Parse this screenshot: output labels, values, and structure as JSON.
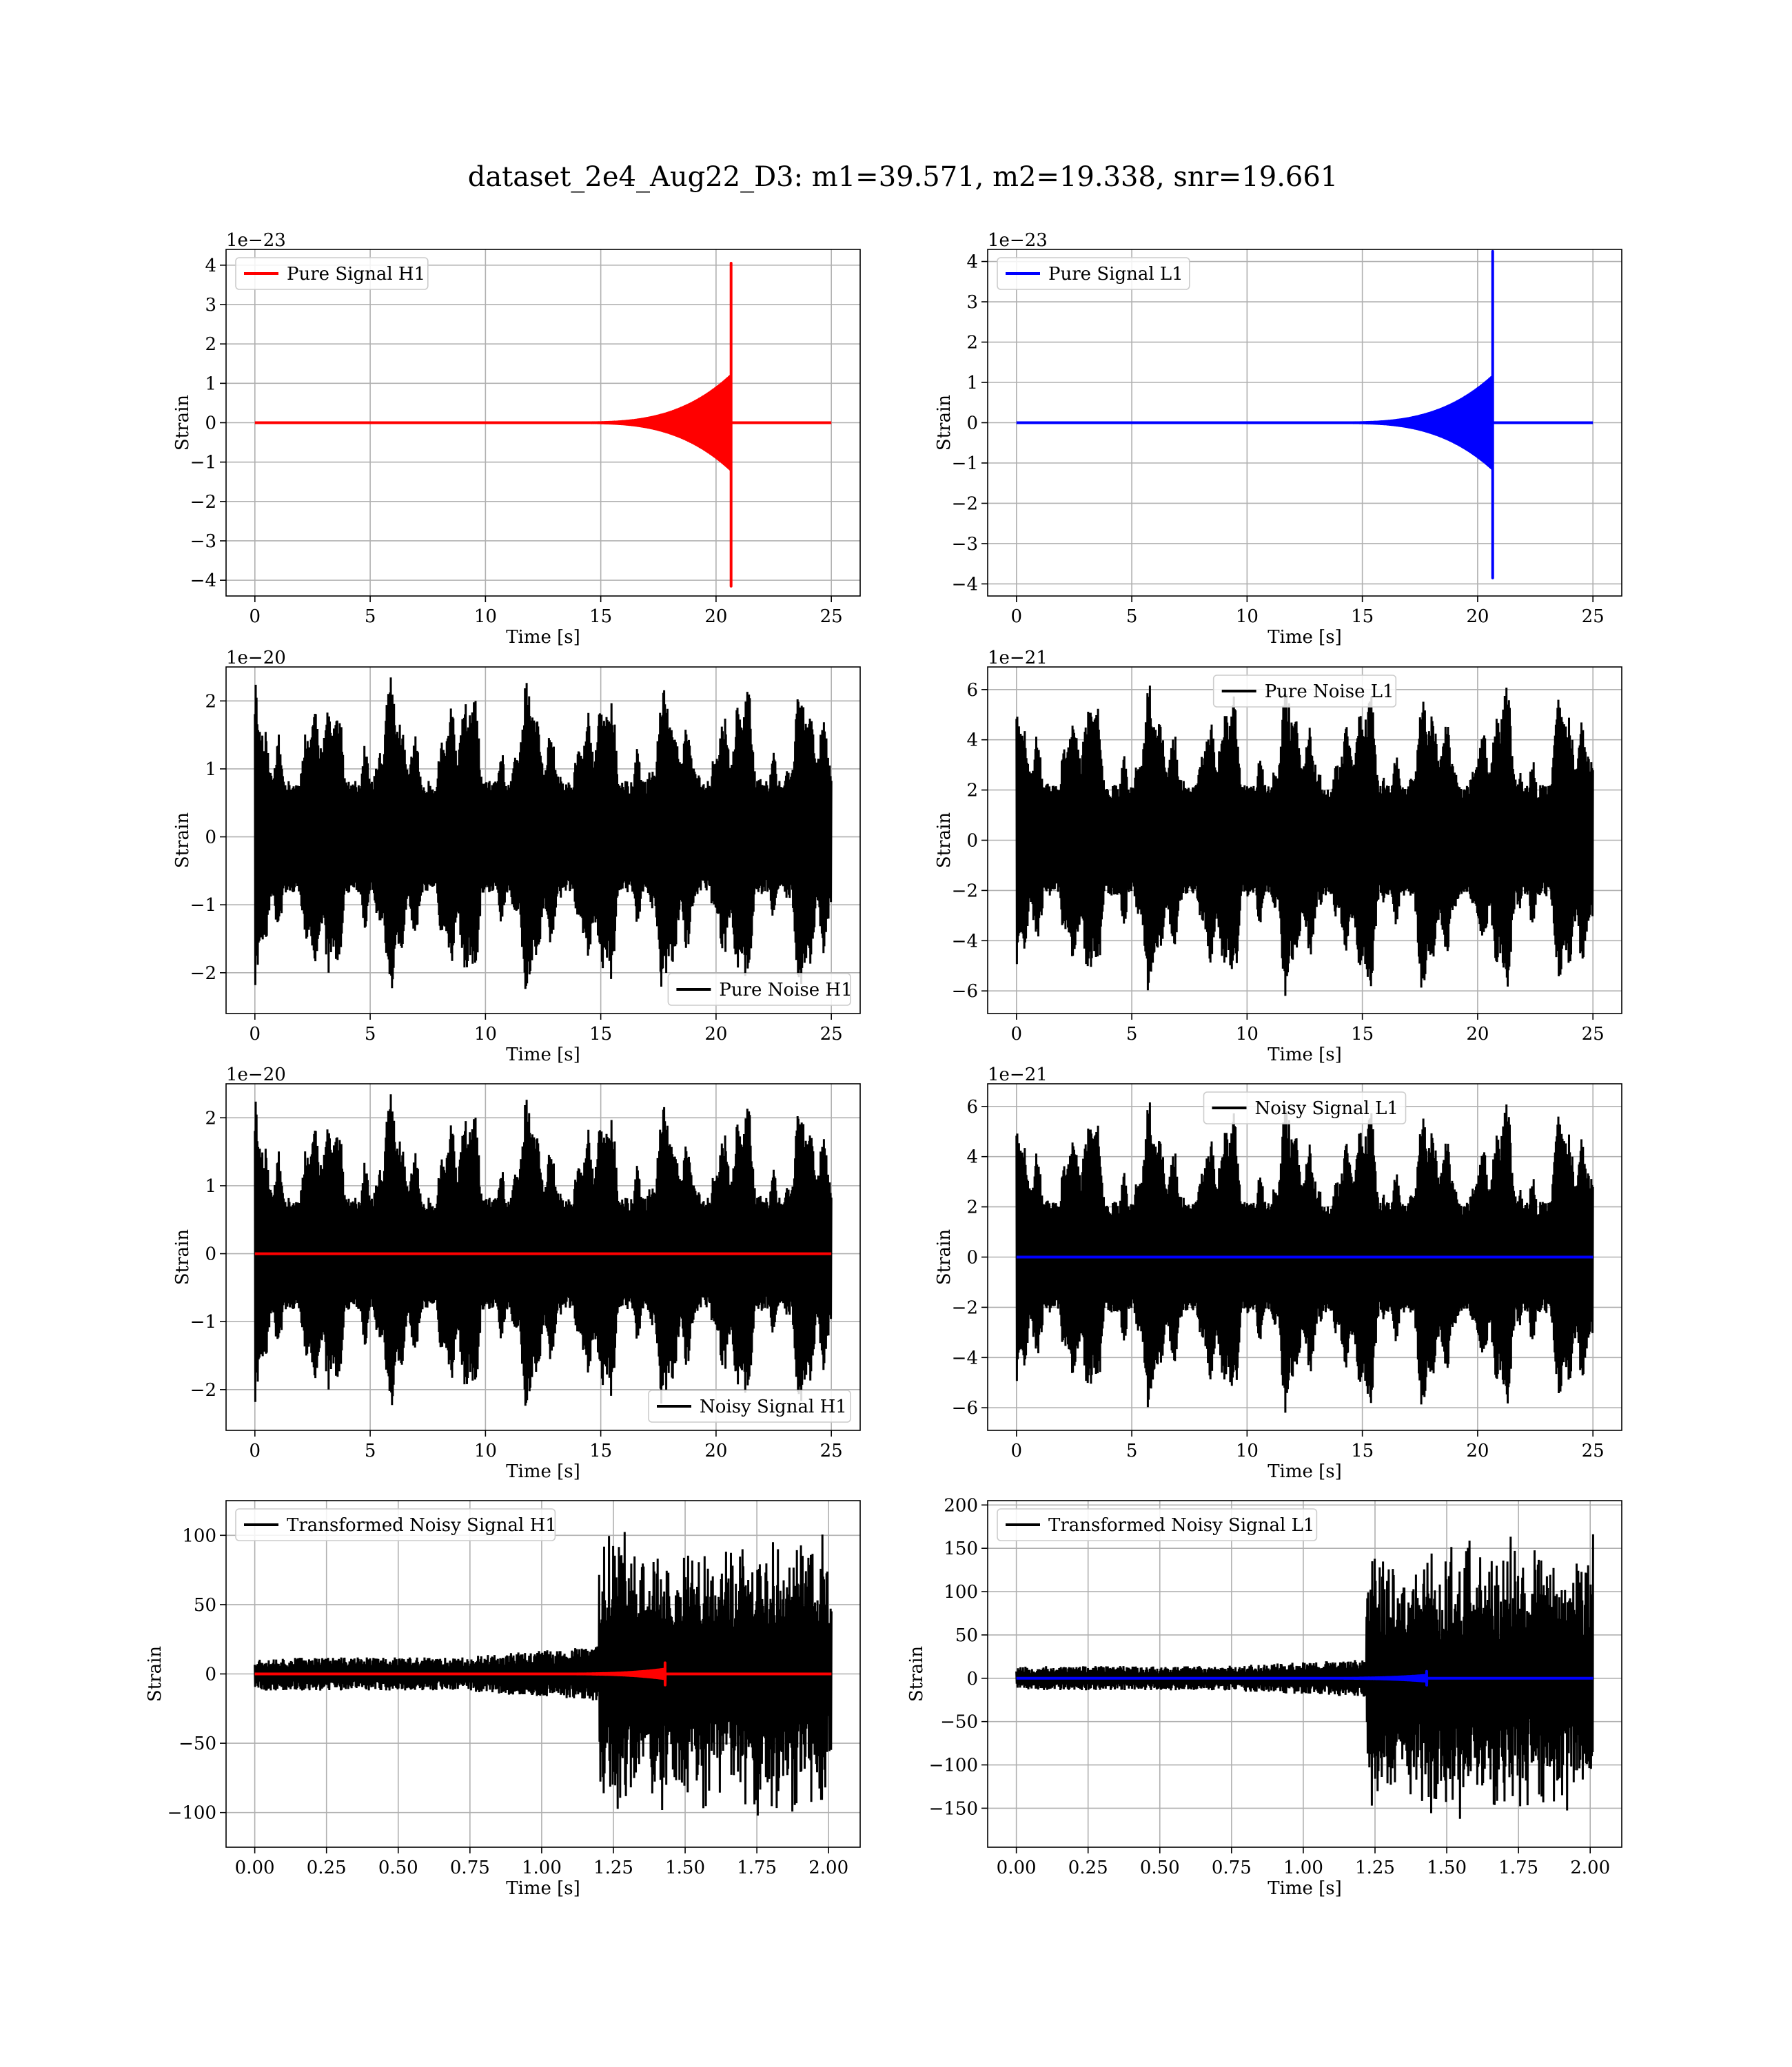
{
  "figure": {
    "title": "dataset_2e4_Aug22_D3: m1=39.571, m2=19.338, snr=19.661"
  },
  "chart_data": [
    {
      "type": "line",
      "id": "pure-signal-h1",
      "offset_text": "1e−23",
      "xlabel": "Time [s]",
      "ylabel": "Strain",
      "xlim": [
        -1.25,
        26.25
      ],
      "ylim": [
        -4.4,
        4.4
      ],
      "xticks": [
        0,
        5,
        10,
        15,
        20,
        25
      ],
      "xtick_labels": [
        "0",
        "5",
        "10",
        "15",
        "20",
        "25"
      ],
      "yticks": [
        -4,
        -3,
        -2,
        -1,
        0,
        1,
        2,
        3,
        4
      ],
      "ytick_labels": [
        "−4",
        "−3",
        "−2",
        "−1",
        "0",
        "1",
        "2",
        "3",
        "4"
      ],
      "grid": true,
      "legend": {
        "position": "upper-left",
        "entries": [
          {
            "label": "Pure Signal H1",
            "color": "#ff0000"
          }
        ]
      },
      "series": [
        {
          "name": "Pure Signal H1",
          "color": "#ff0000",
          "kind": "chirp",
          "chirp": {
            "start": 0,
            "end": 25,
            "merger": 20.65,
            "onset": 14.0,
            "peak": 1.2,
            "spike_max": 4.05,
            "spike_min": -4.15
          }
        }
      ]
    },
    {
      "type": "line",
      "id": "pure-signal-l1",
      "offset_text": "1e−23",
      "xlabel": "Time [s]",
      "ylabel": "Strain",
      "xlim": [
        -1.25,
        26.25
      ],
      "ylim": [
        -4.3,
        4.3
      ],
      "xticks": [
        0,
        5,
        10,
        15,
        20,
        25
      ],
      "xtick_labels": [
        "0",
        "5",
        "10",
        "15",
        "20",
        "25"
      ],
      "yticks": [
        -4,
        -3,
        -2,
        -1,
        0,
        1,
        2,
        3,
        4
      ],
      "ytick_labels": [
        "−4",
        "−3",
        "−2",
        "−1",
        "0",
        "1",
        "2",
        "3",
        "4"
      ],
      "grid": true,
      "legend": {
        "position": "upper-left",
        "entries": [
          {
            "label": "Pure Signal L1",
            "color": "#0000ff"
          }
        ]
      },
      "series": [
        {
          "name": "Pure Signal L1",
          "color": "#0000ff",
          "kind": "chirp",
          "chirp": {
            "start": 0,
            "end": 25,
            "merger": 20.65,
            "onset": 14.0,
            "peak": 1.15,
            "spike_max": 4.25,
            "spike_min": -3.85
          }
        }
      ]
    },
    {
      "type": "line",
      "id": "pure-noise-h1",
      "offset_text": "1e−20",
      "xlabel": "Time [s]",
      "ylabel": "Strain",
      "xlim": [
        -1.25,
        26.25
      ],
      "ylim": [
        -2.6,
        2.5
      ],
      "xticks": [
        0,
        5,
        10,
        15,
        20,
        25
      ],
      "xtick_labels": [
        "0",
        "5",
        "10",
        "15",
        "20",
        "25"
      ],
      "yticks": [
        -2,
        -1,
        0,
        1,
        2
      ],
      "ytick_labels": [
        "−2",
        "−1",
        "0",
        "1",
        "2"
      ],
      "grid": true,
      "legend": {
        "position": "lower-right",
        "entries": [
          {
            "label": "Pure Noise H1",
            "color": "#000000"
          }
        ]
      },
      "series": [
        {
          "name": "Pure Noise H1",
          "color": "#000000",
          "kind": "noise",
          "noise": {
            "start": 0,
            "end": 25,
            "amp": 2.35,
            "base": 1.1,
            "seed": 11
          }
        }
      ]
    },
    {
      "type": "line",
      "id": "pure-noise-l1",
      "offset_text": "1e−21",
      "xlabel": "Time [s]",
      "ylabel": "Strain",
      "xlim": [
        -1.25,
        26.25
      ],
      "ylim": [
        -6.9,
        6.9
      ],
      "xticks": [
        0,
        5,
        10,
        15,
        20,
        25
      ],
      "xtick_labels": [
        "0",
        "5",
        "10",
        "15",
        "20",
        "25"
      ],
      "yticks": [
        -6,
        -4,
        -2,
        0,
        2,
        4,
        6
      ],
      "ytick_labels": [
        "−6",
        "−4",
        "−2",
        "0",
        "2",
        "4",
        "6"
      ],
      "grid": true,
      "legend": {
        "position": "upper-center",
        "entries": [
          {
            "label": "Pure Noise L1",
            "color": "#000000"
          }
        ]
      },
      "series": [
        {
          "name": "Pure Noise L1",
          "color": "#000000",
          "kind": "noise",
          "noise": {
            "start": 0,
            "end": 25,
            "amp": 6.3,
            "base": 3.2,
            "seed": 23
          }
        }
      ]
    },
    {
      "type": "line",
      "id": "noisy-signal-h1",
      "offset_text": "1e−20",
      "xlabel": "Time [s]",
      "ylabel": "Strain",
      "xlim": [
        -1.25,
        26.25
      ],
      "ylim": [
        -2.6,
        2.5
      ],
      "xticks": [
        0,
        5,
        10,
        15,
        20,
        25
      ],
      "xtick_labels": [
        "0",
        "5",
        "10",
        "15",
        "20",
        "25"
      ],
      "yticks": [
        -2,
        -1,
        0,
        1,
        2
      ],
      "ytick_labels": [
        "−2",
        "−1",
        "0",
        "1",
        "2"
      ],
      "grid": true,
      "legend": {
        "position": "lower-right",
        "entries": [
          {
            "label": "Noisy Signal H1",
            "color": "#000000"
          }
        ]
      },
      "series": [
        {
          "name": "Noisy Signal H1",
          "color": "#000000",
          "kind": "noise",
          "noise": {
            "start": 0,
            "end": 25,
            "amp": 2.35,
            "base": 1.1,
            "seed": 11
          }
        },
        {
          "name": "",
          "color": "#ff0000",
          "kind": "flat",
          "flat": {
            "start": 0,
            "end": 25,
            "y": 0
          }
        }
      ]
    },
    {
      "type": "line",
      "id": "noisy-signal-l1",
      "offset_text": "1e−21",
      "xlabel": "Time [s]",
      "ylabel": "Strain",
      "xlim": [
        -1.25,
        26.25
      ],
      "ylim": [
        -6.9,
        6.9
      ],
      "xticks": [
        0,
        5,
        10,
        15,
        20,
        25
      ],
      "xtick_labels": [
        "0",
        "5",
        "10",
        "15",
        "20",
        "25"
      ],
      "yticks": [
        -6,
        -4,
        -2,
        0,
        2,
        4,
        6
      ],
      "ytick_labels": [
        "−6",
        "−4",
        "−2",
        "0",
        "2",
        "4",
        "6"
      ],
      "grid": true,
      "legend": {
        "position": "upper-center",
        "entries": [
          {
            "label": "Noisy Signal L1",
            "color": "#000000"
          }
        ]
      },
      "series": [
        {
          "name": "Noisy Signal L1",
          "color": "#000000",
          "kind": "noise",
          "noise": {
            "start": 0,
            "end": 25,
            "amp": 6.3,
            "base": 3.2,
            "seed": 23
          }
        },
        {
          "name": "",
          "color": "#0000ff",
          "kind": "flat",
          "flat": {
            "start": 0,
            "end": 25,
            "y": 0
          }
        }
      ]
    },
    {
      "type": "line",
      "id": "transformed-noisy-signal-h1",
      "offset_text": "",
      "xlabel": "Time [s]",
      "ylabel": "Strain",
      "xlim": [
        -0.1,
        2.11
      ],
      "ylim": [
        -125,
        125
      ],
      "xticks": [
        0,
        0.25,
        0.5,
        0.75,
        1.0,
        1.25,
        1.5,
        1.75,
        2.0
      ],
      "xtick_labels": [
        "0.00",
        "0.25",
        "0.50",
        "0.75",
        "1.00",
        "1.25",
        "1.50",
        "1.75",
        "2.00"
      ],
      "yticks": [
        -100,
        -50,
        0,
        50,
        100
      ],
      "ytick_labels": [
        "−100",
        "−50",
        "0",
        "50",
        "100"
      ],
      "grid": true,
      "legend": {
        "position": "upper-left",
        "entries": [
          {
            "label": "Transformed Noisy Signal H1",
            "color": "#000000"
          }
        ]
      },
      "series": [
        {
          "name": "Transformed Noisy Signal H1",
          "color": "#000000",
          "kind": "transformed",
          "transformed": {
            "start": 0,
            "end": 2.01,
            "rise": 1.2,
            "low": 12,
            "mid": 20,
            "high": 110,
            "seed": 37
          }
        },
        {
          "name": "",
          "color": "#ff0000",
          "kind": "chirp",
          "chirp": {
            "start": 0,
            "end": 2.01,
            "merger": 1.43,
            "onset": 1.05,
            "peak": 3.5,
            "spike_max": 8,
            "spike_min": -8
          }
        }
      ]
    },
    {
      "type": "line",
      "id": "transformed-noisy-signal-l1",
      "offset_text": "",
      "xlabel": "Time [s]",
      "ylabel": "Strain",
      "xlim": [
        -0.1,
        2.11
      ],
      "ylim": [
        -195,
        205
      ],
      "xticks": [
        0,
        0.25,
        0.5,
        0.75,
        1.0,
        1.25,
        1.5,
        1.75,
        2.0
      ],
      "xtick_labels": [
        "0.00",
        "0.25",
        "0.50",
        "0.75",
        "1.00",
        "1.25",
        "1.50",
        "1.75",
        "2.00"
      ],
      "yticks": [
        -150,
        -100,
        -50,
        0,
        50,
        100,
        150,
        200
      ],
      "ytick_labels": [
        "−150",
        "−100",
        "−50",
        "0",
        "50",
        "100",
        "150",
        "200"
      ],
      "grid": true,
      "legend": {
        "position": "upper-left",
        "entries": [
          {
            "label": "Transformed Noisy Signal L1",
            "color": "#000000"
          }
        ]
      },
      "series": [
        {
          "name": "Transformed Noisy Signal L1",
          "color": "#000000",
          "kind": "transformed",
          "transformed": {
            "start": 0,
            "end": 2.01,
            "rise": 1.22,
            "low": 14,
            "mid": 22,
            "high": 170,
            "seed": 53
          }
        },
        {
          "name": "",
          "color": "#0000ff",
          "kind": "chirp",
          "chirp": {
            "start": 0,
            "end": 2.01,
            "merger": 1.43,
            "onset": 1.05,
            "peak": 3.5,
            "spike_max": 8,
            "spike_min": -8
          }
        }
      ]
    }
  ]
}
